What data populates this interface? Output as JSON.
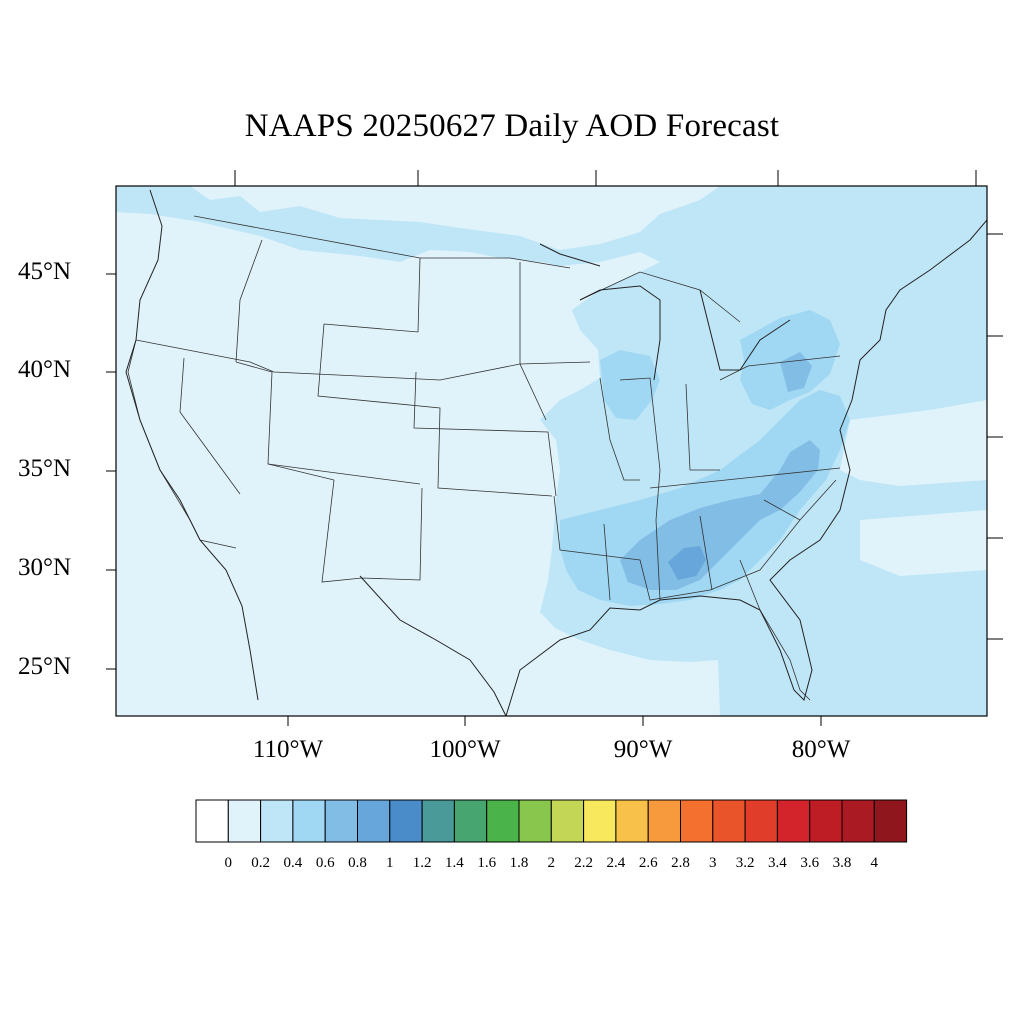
{
  "title": "NAAPS 20250627 Daily AOD Forecast",
  "map": {
    "latitude_labels": [
      "45°N",
      "40°N",
      "35°N",
      "30°N",
      "25°N"
    ],
    "longitude_labels": [
      "110°W",
      "100°W",
      "90°W",
      "80°W"
    ]
  },
  "colorbar": {
    "labels": [
      "0",
      "0.2",
      "0.4",
      "0.6",
      "0.8",
      "1",
      "1.2",
      "1.4",
      "1.6",
      "1.8",
      "2",
      "2.2",
      "2.4",
      "2.6",
      "2.8",
      "3",
      "3.2",
      "3.4",
      "3.6",
      "3.8",
      "4"
    ],
    "colors": [
      "#ffffff",
      "#e0f3fb",
      "#bfe6f7",
      "#a0d8f4",
      "#82bde6",
      "#67a6da",
      "#4a8cca",
      "#4a9a9a",
      "#47a670",
      "#4ab34a",
      "#88c64e",
      "#c3d655",
      "#f7e85e",
      "#f8c24a",
      "#f79a3e",
      "#f3702e",
      "#e9542b",
      "#e03e2a",
      "#d4242b",
      "#bf1d25",
      "#a91a22",
      "#8f161c"
    ]
  },
  "colors": {
    "background_aod": "#e0f3fb",
    "aod_0_4": "#bfe6f7",
    "aod_0_6": "#a0d8f4",
    "aod_0_8": "#82bde6",
    "aod_1_0": "#67a6da"
  }
}
